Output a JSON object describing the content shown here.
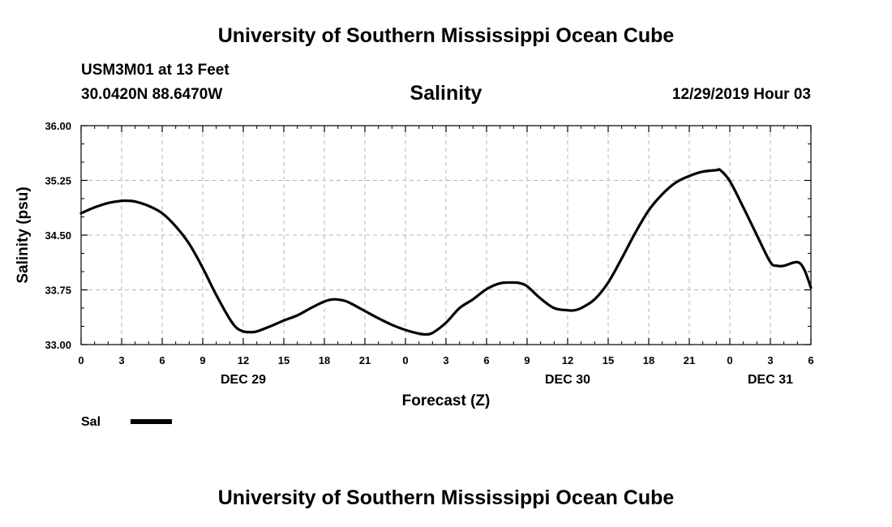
{
  "header": {
    "title": "University of Southern Mississippi Ocean Cube",
    "station": "USM3M01 at 13 Feet",
    "coordinates": "30.0420N 88.6470W",
    "variable": "Salinity",
    "datetime": "12/29/2019 Hour 03"
  },
  "footer": {
    "title": "University of Southern Mississippi Ocean Cube"
  },
  "chart_data": {
    "type": "line",
    "xlabel": "Forecast (Z)",
    "ylabel": "Salinity (psu)",
    "ylim": [
      33.0,
      36.0
    ],
    "xlim": [
      0,
      54
    ],
    "x_unit": "hours from 12/29/2019 00Z",
    "yticks": [
      "33.00",
      "33.75",
      "34.50",
      "35.25",
      "36.00"
    ],
    "xtick_labels": [
      "0",
      "3",
      "6",
      "9",
      "12",
      "15",
      "18",
      "21",
      "0",
      "3",
      "6",
      "9",
      "12",
      "15",
      "18",
      "21",
      "0",
      "3",
      "6"
    ],
    "day_labels": [
      {
        "label": "DEC 29",
        "x": 12
      },
      {
        "label": "DEC 30",
        "x": 36
      },
      {
        "label": "DEC 31",
        "x": 51
      }
    ],
    "grid": true,
    "legend": "bottom-left",
    "series": [
      {
        "name": "Sal",
        "color": "#000000",
        "x": [
          0,
          1,
          2,
          3,
          3.5,
          4,
          5,
          6,
          7,
          8,
          9,
          10,
          11,
          11.5,
          12,
          12.5,
          13,
          14,
          15,
          16,
          17,
          18,
          18.7,
          19.5,
          20,
          21,
          22,
          23,
          24,
          25,
          25.5,
          26,
          27,
          28,
          29,
          30,
          31,
          32,
          32.5,
          33,
          34,
          35,
          36,
          36.5,
          37,
          38,
          39,
          40,
          41,
          42,
          43,
          44,
          45,
          46,
          47,
          47.3,
          48,
          49,
          50,
          51,
          51.5,
          52,
          53,
          53.5,
          54
        ],
        "values": [
          34.8,
          34.88,
          34.94,
          34.97,
          34.97,
          34.96,
          34.9,
          34.8,
          34.62,
          34.38,
          34.05,
          33.68,
          33.35,
          33.23,
          33.18,
          33.17,
          33.18,
          33.25,
          33.33,
          33.4,
          33.5,
          33.59,
          33.62,
          33.6,
          33.56,
          33.46,
          33.36,
          33.27,
          33.2,
          33.15,
          33.14,
          33.16,
          33.3,
          33.5,
          33.62,
          33.76,
          33.84,
          33.85,
          33.84,
          33.8,
          33.63,
          33.5,
          33.47,
          33.47,
          33.5,
          33.62,
          33.85,
          34.18,
          34.53,
          34.84,
          35.06,
          35.22,
          35.31,
          35.37,
          35.39,
          35.39,
          35.24,
          34.88,
          34.5,
          34.13,
          34.08,
          34.08,
          34.13,
          34.03,
          33.78
        ]
      }
    ]
  }
}
